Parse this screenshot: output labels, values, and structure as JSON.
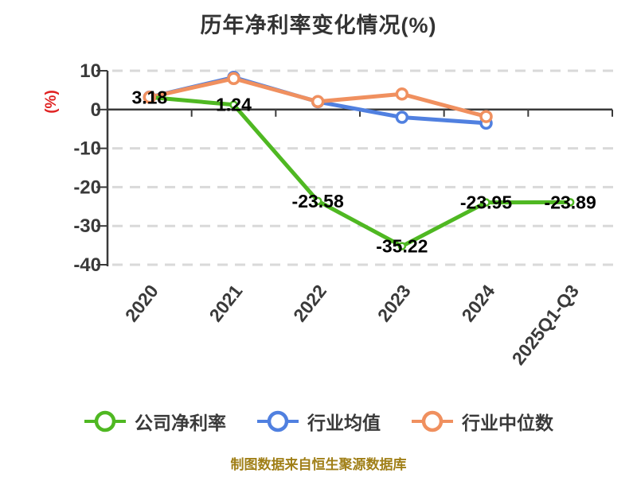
{
  "title": "历年净利率变化情况(%)",
  "caption": "制图数据来自恒生聚源数据库",
  "colors": {
    "company": "#4fb822",
    "industry_avg": "#5080e0",
    "industry_median": "#f0905f",
    "axis": "#3a3a3a",
    "grid": "#d9d9d9",
    "ylabel": "#e02222",
    "caption": "#a07f17",
    "data_label": "#000000",
    "title": "#333333"
  },
  "legend": [
    {
      "label": "公司净利率",
      "series": "company"
    },
    {
      "label": "行业均值",
      "series": "industry_avg"
    },
    {
      "label": "行业中位数",
      "series": "industry_median"
    }
  ],
  "chart_data": {
    "type": "line",
    "title": "历年净利率变化情况(%)",
    "ylabel": "(%)",
    "categories": [
      "2020",
      "2021",
      "2022",
      "2023",
      "2024",
      "2025Q1-Q3"
    ],
    "series": [
      {
        "name": "公司净利率",
        "color_key": "company",
        "values": [
          3.18,
          1.24,
          -23.58,
          -35.22,
          -23.95,
          -23.89
        ],
        "labels": [
          "3.18",
          "1.24",
          "-23.58",
          "-35.22",
          "-23.95",
          "-23.89"
        ],
        "marker_r": 4
      },
      {
        "name": "行业均值",
        "color_key": "industry_avg",
        "values": [
          3.2,
          8.3,
          2.0,
          -2.0,
          -3.5,
          null
        ],
        "labels": null,
        "marker_r": 6.5
      },
      {
        "name": "行业中位数",
        "color_key": "industry_median",
        "values": [
          3.18,
          8.0,
          2.05,
          4.0,
          -1.8,
          null
        ],
        "labels": null,
        "marker_r": 6.5
      }
    ],
    "ylim": [
      -40,
      10
    ],
    "yticks": [
      10,
      0,
      -10,
      -20,
      -30,
      -40
    ],
    "grid": true,
    "grid_style": "dashed",
    "legend_position": "bottom",
    "x_tick_rotation": -52
  }
}
